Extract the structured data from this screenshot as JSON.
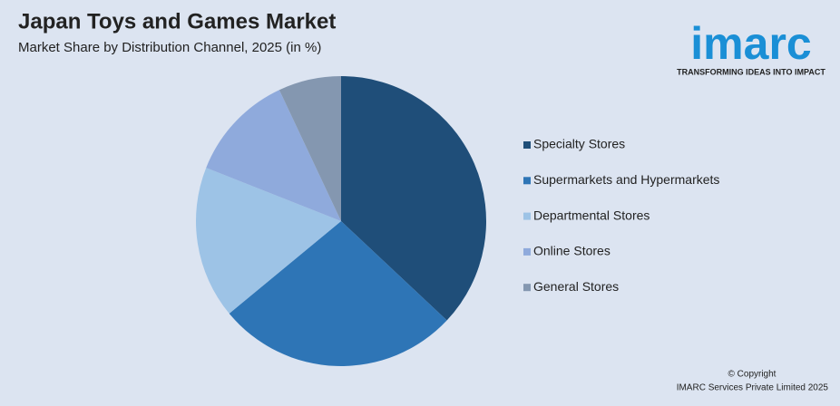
{
  "chart_data": {
    "type": "pie",
    "title": "Japan Toys and Games Market",
    "subtitle": "Market Share by Distribution Channel, 2025 (in %)",
    "categories": [
      "Specialty Stores",
      "Supermarkets and Hypermarkets",
      "Departmental Stores",
      "Online Stores",
      "General Stores"
    ],
    "values": [
      37,
      27,
      17,
      12,
      7
    ],
    "colors": [
      "#1f4e79",
      "#2e75b6",
      "#9dc3e6",
      "#8faadc",
      "#8497b0"
    ],
    "legend": "right"
  },
  "logo": {
    "name": "imarc",
    "tagline": "TRANSFORMING IDEAS INTO IMPACT"
  },
  "footer": {
    "copyright": "© Copyright",
    "company": "IMARC Services Private Limited 2025"
  }
}
